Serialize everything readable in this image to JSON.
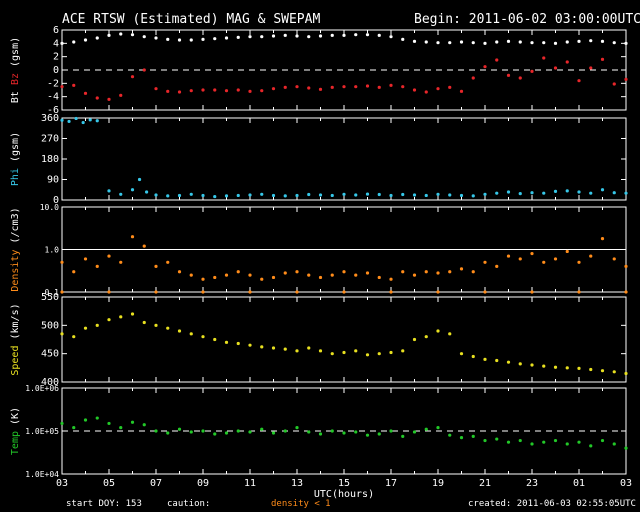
{
  "header": {
    "title": "ACE RTSW (Estimated) MAG & SWEPAM",
    "begin": "Begin: 2011-06-02 03:00:00UTC"
  },
  "footer": {
    "start_doy": "start DOY: 153",
    "caution": "caution:",
    "caution_note": "density < 1",
    "created": "created: 2011-06-03 02:55:05UTC",
    "caution_color": "#ff8c1a"
  },
  "chart_data": {
    "type": "scatter",
    "xlabel": "UTC(hours)",
    "x_ticks": [
      "03",
      "05",
      "07",
      "09",
      "11",
      "13",
      "15",
      "17",
      "19",
      "21",
      "23",
      "01",
      "03"
    ],
    "panels": [
      {
        "id": "bz-bt",
        "ylabel_parts": [
          {
            "text": "Bt",
            "color": "#ffffff"
          },
          {
            "text": " ",
            "color": "#ffffff"
          },
          {
            "text": "Bz",
            "color": "#e8262a"
          },
          {
            "text": " (gsm)",
            "color": "#ffffff"
          }
        ],
        "ylim": [
          -6,
          6
        ],
        "ticks": [
          "6",
          "4",
          "2",
          "0",
          "-2",
          "-4",
          "-6"
        ],
        "tick_values": [
          6,
          4,
          2,
          0,
          -2,
          -4,
          -6
        ],
        "dashed_at": [
          0
        ],
        "series": [
          {
            "color": "#ffffff",
            "x": [
              0,
              0.5,
              1,
              1.5,
              2,
              2.5,
              3,
              3.5,
              4,
              4.5,
              5,
              5.5,
              6,
              6.5,
              7,
              7.5,
              8,
              8.5,
              9,
              9.5,
              10,
              10.5,
              11,
              11.5,
              12,
              12.5,
              13,
              13.5,
              14,
              14.5,
              15,
              15.5,
              16,
              16.5,
              17,
              17.5,
              18,
              18.5,
              19,
              19.5,
              20,
              20.5,
              21,
              21.5,
              22,
              22.5,
              23,
              23.5,
              24
            ],
            "y": [
              4,
              4.2,
              4.5,
              4.8,
              5.2,
              5.4,
              5.3,
              5,
              4.8,
              4.6,
              4.5,
              4.5,
              4.6,
              4.7,
              4.8,
              4.9,
              5,
              5,
              5.1,
              5.2,
              5.1,
              5,
              5.1,
              5.2,
              5.2,
              5.3,
              5.3,
              5.2,
              5,
              4.6,
              4.3,
              4.2,
              4.1,
              4.1,
              4.2,
              4.1,
              4,
              4.2,
              4.3,
              4.2,
              4.1,
              4.1,
              4,
              4.2,
              4.3,
              4.4,
              4.3,
              4.1,
              4
            ]
          },
          {
            "color": "#e8262a",
            "x": [
              0,
              0.5,
              1,
              1.5,
              2,
              2.5,
              3,
              3.5,
              4,
              4.5,
              5,
              5.5,
              6,
              6.5,
              7,
              7.5,
              8,
              8.5,
              9,
              9.5,
              10,
              10.5,
              11,
              11.5,
              12,
              12.5,
              13,
              13.5,
              14,
              14.5,
              15,
              15.5,
              16,
              16.5,
              17,
              17.5,
              18,
              18.5,
              19,
              19.5,
              20,
              20.5,
              21,
              21.5,
              22,
              22.5,
              23,
              23.5,
              24
            ],
            "y": [
              -2.5,
              -2.3,
              -3.5,
              -4.2,
              -4.4,
              -3.8,
              -1,
              0,
              -2.8,
              -3.2,
              -3.3,
              -3.1,
              -3,
              -3,
              -3.1,
              -3,
              -3.2,
              -3.1,
              -2.8,
              -2.6,
              -2.5,
              -2.7,
              -2.9,
              -2.6,
              -2.5,
              -2.5,
              -2.4,
              -2.6,
              -2.3,
              -2.5,
              -3,
              -3.3,
              -2.8,
              -2.6,
              -3.2,
              -1.2,
              0.5,
              1.5,
              -0.8,
              -1.2,
              -0.2,
              1.8,
              0.3,
              1.2,
              -1.6,
              0.3,
              1.6,
              -2.1,
              -1.4
            ]
          }
        ]
      },
      {
        "id": "phi",
        "ylabel_parts": [
          {
            "text": "Phi",
            "color": "#36c7e8"
          },
          {
            "text": " (gsm)",
            "color": "#ffffff"
          }
        ],
        "ylim": [
          0,
          360
        ],
        "ticks": [
          "360",
          "270",
          "180",
          "90",
          "0"
        ],
        "tick_values": [
          360,
          270,
          180,
          90,
          0
        ],
        "dashed_at": [],
        "series": [
          {
            "color": "#36c7e8",
            "x": [
              0,
              0.3,
              0.6,
              0.9,
              1.2,
              1.5,
              2,
              2.5,
              3,
              3.3,
              3.6,
              4,
              4.5,
              5,
              5.5,
              6,
              6.5,
              7,
              7.5,
              8,
              8.5,
              9,
              9.5,
              10,
              10.5,
              11,
              11.5,
              12,
              12.5,
              13,
              13.5,
              14,
              14.5,
              15,
              15.5,
              16,
              16.5,
              17,
              17.5,
              18,
              18.5,
              19,
              19.5,
              20,
              20.5,
              21,
              21.5,
              22,
              22.5,
              23,
              23.5,
              24
            ],
            "y": [
              350,
              345,
              358,
              340,
              352,
              348,
              40,
              25,
              45,
              90,
              35,
              22,
              18,
              20,
              25,
              20,
              15,
              18,
              20,
              22,
              25,
              20,
              18,
              20,
              24,
              22,
              20,
              25,
              22,
              26,
              24,
              20,
              24,
              22,
              20,
              25,
              22,
              20,
              18,
              25,
              30,
              35,
              28,
              32,
              30,
              38,
              40,
              35,
              30,
              45,
              32,
              30
            ]
          }
        ]
      },
      {
        "id": "density",
        "ylabel_parts": [
          {
            "text": "Density",
            "color": "#ff8c1a"
          },
          {
            "text": " (/cm3)",
            "color": "#ffffff"
          }
        ],
        "ylim": [
          0.1,
          10
        ],
        "log": true,
        "ticks": [
          "10.0",
          "1.0",
          "0.1"
        ],
        "tick_values": [
          10,
          1,
          0.1
        ],
        "dashed_at": [],
        "solid_at": [
          1
        ],
        "series": [
          {
            "color": "#ff8c1a",
            "x": [
              0,
              0.5,
              1,
              1.5,
              2,
              2.5,
              3,
              3.5,
              4,
              4.5,
              5,
              5.5,
              6,
              6.5,
              7,
              7.5,
              8,
              8.5,
              9,
              9.5,
              10,
              10.5,
              11,
              11.5,
              12,
              12.5,
              13,
              13.5,
              14,
              14.5,
              15,
              15.5,
              16,
              16.5,
              17,
              17.5,
              18,
              18.5,
              19,
              19.5,
              20,
              20.5,
              21,
              21.5,
              22,
              22.5,
              23,
              23.5,
              24
            ],
            "y": [
              0.5,
              0.3,
              0.6,
              0.4,
              0.7,
              0.5,
              2,
              1.2,
              0.4,
              0.5,
              0.3,
              0.25,
              0.2,
              0.22,
              0.25,
              0.3,
              0.25,
              0.2,
              0.22,
              0.28,
              0.3,
              0.25,
              0.22,
              0.25,
              0.3,
              0.25,
              0.28,
              0.22,
              0.2,
              0.3,
              0.25,
              0.3,
              0.28,
              0.3,
              0.35,
              0.3,
              0.5,
              0.4,
              0.7,
              0.6,
              0.8,
              0.5,
              0.6,
              0.9,
              0.5,
              0.7,
              1.8,
              0.6,
              0.4
            ]
          },
          {
            "color": "#ff8c1a",
            "x": [
              0,
              2,
              4,
              6,
              8,
              10,
              12,
              14,
              16,
              18,
              20,
              22,
              24
            ],
            "y": [
              0.1,
              0.1,
              0.1,
              0.1,
              0.1,
              0.1,
              0.1,
              0.1,
              0.1,
              0.1,
              0.1,
              0.1,
              0.1
            ]
          }
        ]
      },
      {
        "id": "speed",
        "ylabel_parts": [
          {
            "text": "Speed",
            "color": "#e8e020"
          },
          {
            "text": " (km/s)",
            "color": "#ffffff"
          }
        ],
        "ylim": [
          400,
          550
        ],
        "ticks": [
          "550",
          "500",
          "450",
          "400"
        ],
        "tick_values": [
          550,
          500,
          450,
          400
        ],
        "dashed_at": [],
        "series": [
          {
            "color": "#e8e020",
            "x": [
              0,
              0.5,
              1,
              1.5,
              2,
              2.5,
              3,
              3.5,
              4,
              4.5,
              5,
              5.5,
              6,
              6.5,
              7,
              7.5,
              8,
              8.5,
              9,
              9.5,
              10,
              10.5,
              11,
              11.5,
              12,
              12.5,
              13,
              13.5,
              14,
              14.5,
              15,
              15.5,
              16,
              16.5,
              17,
              17.5,
              18,
              18.5,
              19,
              19.5,
              20,
              20.5,
              21,
              21.5,
              22,
              22.5,
              23,
              23.5,
              24
            ],
            "y": [
              485,
              480,
              495,
              500,
              510,
              515,
              520,
              505,
              500,
              495,
              490,
              485,
              480,
              475,
              470,
              468,
              465,
              462,
              460,
              458,
              455,
              460,
              455,
              450,
              452,
              455,
              448,
              450,
              452,
              455,
              475,
              480,
              490,
              485,
              450,
              445,
              440,
              438,
              435,
              432,
              430,
              428,
              426,
              425,
              424,
              422,
              420,
              418,
              415
            ]
          }
        ]
      },
      {
        "id": "temp",
        "ylabel_parts": [
          {
            "text": "Temp",
            "color": "#22c828"
          },
          {
            "text": " (K)",
            "color": "#ffffff"
          }
        ],
        "ylim": [
          10000,
          1000000
        ],
        "log": true,
        "ticks": [
          "1.0E+06",
          "1.0E+05",
          "1.0E+04"
        ],
        "tick_values": [
          1000000,
          100000,
          10000
        ],
        "dashed_at": [
          100000
        ],
        "series": [
          {
            "color": "#22c828",
            "x": [
              0,
              0.5,
              1,
              1.5,
              2,
              2.5,
              3,
              3.5,
              4,
              4.5,
              5,
              5.5,
              6,
              6.5,
              7,
              7.5,
              8,
              8.5,
              9,
              9.5,
              10,
              10.5,
              11,
              11.5,
              12,
              12.5,
              13,
              13.5,
              14,
              14.5,
              15,
              15.5,
              16,
              16.5,
              17,
              17.5,
              18,
              18.5,
              19,
              19.5,
              20,
              20.5,
              21,
              21.5,
              22,
              22.5,
              23,
              23.5,
              24
            ],
            "y": [
              150000,
              120000,
              180000,
              200000,
              150000,
              120000,
              160000,
              140000,
              100000,
              90000,
              110000,
              95000,
              100000,
              85000,
              90000,
              100000,
              95000,
              110000,
              90000,
              100000,
              120000,
              95000,
              85000,
              100000,
              90000,
              95000,
              80000,
              85000,
              100000,
              75000,
              95000,
              110000,
              120000,
              80000,
              70000,
              75000,
              60000,
              65000,
              55000,
              60000,
              50000,
              55000,
              60000,
              50000,
              55000,
              45000,
              60000,
              50000,
              40000
            ]
          }
        ]
      }
    ]
  }
}
